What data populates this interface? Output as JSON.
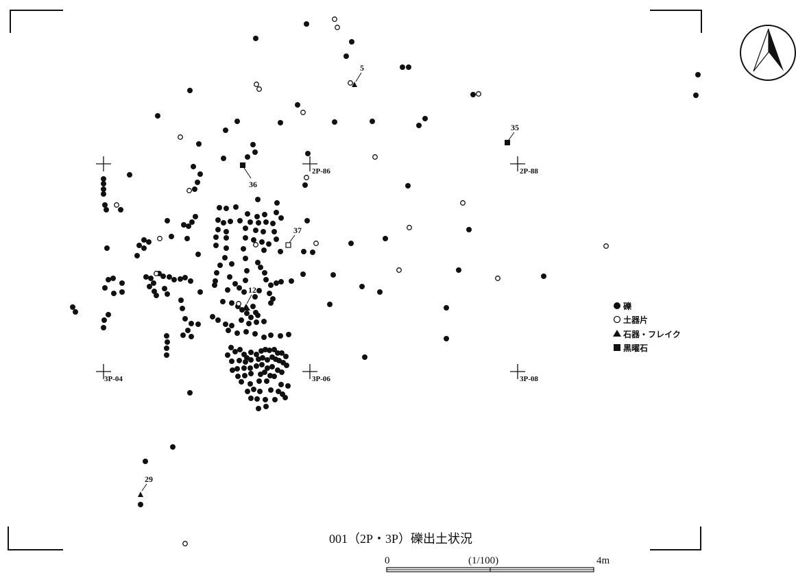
{
  "title": "001（2P・3P）礫出土状況",
  "scale": {
    "start_label": "0",
    "ratio_label": "(1/100)",
    "end_label": "4m"
  },
  "legend": [
    {
      "symbol": "filled-circle",
      "label": "礫"
    },
    {
      "symbol": "open-circle",
      "label": "土器片"
    },
    {
      "symbol": "filled-triangle",
      "label": "石器・フレイク"
    },
    {
      "symbol": "filled-square",
      "label": "黒曜石"
    }
  ],
  "grid_points": [
    "2P-86",
    "2P-88",
    "3P-04",
    "3P-06",
    "3P-08"
  ],
  "labeled_finds": [
    {
      "id": "5",
      "type": "filled-triangle"
    },
    {
      "id": "35",
      "type": "filled-square"
    },
    {
      "id": "36",
      "type": "filled-square"
    },
    {
      "id": "37",
      "type": "open-square"
    },
    {
      "id": "12",
      "type": "filled-triangle"
    },
    {
      "id": "29",
      "type": "filled-triangle"
    }
  ],
  "north_arrow": "north-arrow-icon"
}
